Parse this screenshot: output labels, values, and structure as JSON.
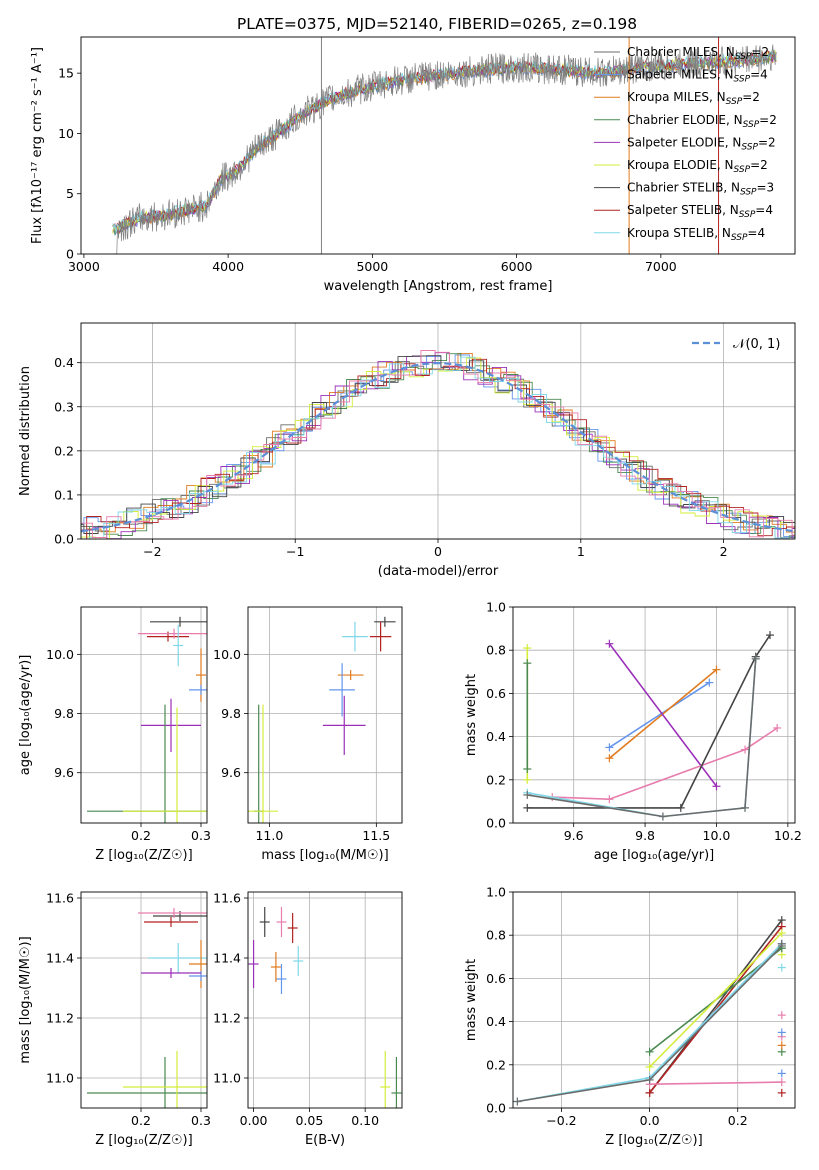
{
  "title": "PLATE=0375, MJD=52140, FIBERID=0265, z=0.198",
  "colors": {
    "Chabrier MILES": "#6b6b6b",
    "Salpeter MILES": "#6495ed",
    "Kroupa MILES": "#e07b1f",
    "Chabrier ELODIE": "#4a8a50",
    "Salpeter ELODIE": "#9b30b8",
    "Kroupa ELODIE": "#d4ed3a",
    "Chabrier STELIB": "#444444",
    "Salpeter STELIB": "#b22222",
    "Kroupa STELIB": "#7fd8e8",
    "pink": "#e87dad",
    "data": "#808080"
  },
  "chart_data": [
    {
      "id": "spectrum",
      "type": "line",
      "xlabel": "wavelength [Angstrom, rest frame]",
      "ylabel": "Flux [fλ10⁻¹⁷ erg cm⁻² s⁻¹ A⁻¹]",
      "xlim": [
        2980,
        7930
      ],
      "ylim": [
        0,
        18
      ],
      "xticks": [
        3000,
        4000,
        5000,
        6000,
        7000
      ],
      "yticks": [
        0,
        5,
        10,
        15
      ],
      "grid": false,
      "legend_placement": "top-right",
      "legend": [
        {
          "label": "Chabrier MILES, N",
          "sub": "SSP",
          "tail": "=2"
        },
        {
          "label": "Salpeter MILES, N",
          "sub": "SSP",
          "tail": "=4"
        },
        {
          "label": "Kroupa MILES, N",
          "sub": "SSP",
          "tail": "=2"
        },
        {
          "label": "Chabrier ELODIE, N",
          "sub": "SSP",
          "tail": "=2"
        },
        {
          "label": "Salpeter ELODIE, N",
          "sub": "SSP",
          "tail": "=2"
        },
        {
          "label": "Kroupa ELODIE, N",
          "sub": "SSP",
          "tail": "=2"
        },
        {
          "label": "Chabrier STELIB, N",
          "sub": "SSP",
          "tail": "=3"
        },
        {
          "label": "Salpeter STELIB, N",
          "sub": "SSP",
          "tail": "=4"
        },
        {
          "label": "Kroupa STELIB, N",
          "sub": "SSP",
          "tail": "=4"
        }
      ],
      "data_envelope": {
        "x": [
          3200,
          3400,
          3550,
          3700,
          3850,
          3950,
          4050,
          4200,
          4300,
          4500,
          4700,
          4900,
          5100,
          5300,
          5500,
          5800,
          6000,
          6300,
          6600,
          6800,
          7000,
          7200,
          7500,
          7800
        ],
        "y": [
          2.0,
          3.0,
          3.2,
          3.6,
          4.0,
          6.2,
          6.8,
          8.8,
          9.6,
          11.5,
          12.8,
          13.6,
          14.2,
          14.6,
          14.9,
          15.3,
          15.5,
          15.3,
          15.0,
          15.4,
          15.6,
          15.8,
          16.0,
          16.4
        ]
      },
      "sky_lines": [
        4647,
        6780,
        7400
      ]
    },
    {
      "id": "residuals",
      "type": "line",
      "xlabel": "(data-model)/error",
      "ylabel": "Normed distribution",
      "xlim": [
        -2.5,
        2.5
      ],
      "ylim": [
        0,
        0.49
      ],
      "xticks": [
        -2,
        -1,
        0,
        1,
        2
      ],
      "yticks": [
        0.0,
        0.1,
        0.2,
        0.3,
        0.4
      ],
      "grid": true,
      "legend_placement": "top-right",
      "legend": [
        {
          "label": "𝒩(0, 1)",
          "style": "dashed"
        }
      ],
      "gaussian": {
        "mean": 0,
        "sigma": 1
      }
    },
    {
      "id": "age-vs-Z",
      "type": "scatter",
      "xlabel": "Z [log₁₀(Z/Z☉)]",
      "ylabel": "age  [log₁₀(age/yr)]",
      "xlim": [
        0.1,
        0.31
      ],
      "ylim": [
        9.43,
        10.16
      ],
      "xticks": [
        0.2,
        0.3
      ],
      "yticks": [
        9.6,
        9.8,
        10.0
      ],
      "grid": true,
      "points": [
        {
          "series": "Chabrier STELIB",
          "x": 0.265,
          "y": 10.11,
          "xerr": 0.05
        },
        {
          "series": "Salpeter STELIB",
          "x": 0.245,
          "y": 10.06,
          "xerr": 0.035
        },
        {
          "series": "pink",
          "x": 0.255,
          "y": 10.07,
          "xerr": 0.06
        },
        {
          "series": "Kroupa STELIB",
          "x": 0.262,
          "y": 10.03,
          "yerr": 0.07
        },
        {
          "series": "Kroupa MILES",
          "x": 0.3,
          "y": 9.93,
          "yerr": 0.09
        },
        {
          "series": "Salpeter MILES",
          "x": 0.3,
          "y": 9.88,
          "xerr": 0.02
        },
        {
          "series": "Salpeter ELODIE",
          "x": 0.25,
          "y": 9.76,
          "xerr": 0.05,
          "yerr": 0.09
        },
        {
          "series": "Chabrier ELODIE",
          "x": 0.24,
          "y": 9.47,
          "yerr": 0.36,
          "xerr": 0.13
        },
        {
          "series": "Kroupa ELODIE",
          "x": 0.26,
          "y": 9.47,
          "yerr": 0.35,
          "xerr": 0.09
        }
      ]
    },
    {
      "id": "age-vs-mass",
      "type": "scatter",
      "xlabel": "mass [log₁₀(M/M☉)]",
      "ylabel": "",
      "xlim": [
        10.9,
        11.62
      ],
      "ylim": [
        9.43,
        10.16
      ],
      "xticks": [
        11.0,
        11.5
      ],
      "yticks": [
        9.6,
        9.8,
        10.0
      ],
      "grid": true,
      "points": [
        {
          "series": "Chabrier STELIB",
          "x": 11.54,
          "y": 10.11,
          "xerr": 0.05
        },
        {
          "series": "Salpeter STELIB",
          "x": 11.52,
          "y": 10.06,
          "xerr": 0.05,
          "yerr": 0.05
        },
        {
          "series": "Kroupa STELIB",
          "x": 11.4,
          "y": 10.06,
          "xerr": 0.06,
          "yerr": 0.05
        },
        {
          "series": "Kroupa MILES",
          "x": 11.38,
          "y": 9.93,
          "xerr": 0.06
        },
        {
          "series": "Salpeter MILES",
          "x": 11.34,
          "y": 9.88,
          "xerr": 0.06,
          "yerr": 0.09
        },
        {
          "series": "Salpeter ELODIE",
          "x": 11.35,
          "y": 9.76,
          "xerr": 0.1,
          "yerr": 0.1
        },
        {
          "series": "Chabrier ELODIE",
          "x": 10.95,
          "y": 9.47,
          "yerr": 0.36
        },
        {
          "series": "Kroupa ELODIE",
          "x": 10.97,
          "y": 9.47,
          "yerr": 0.36,
          "xerr": 0.07
        }
      ]
    },
    {
      "id": "weight-vs-age",
      "type": "line",
      "xlabel": "age  [log₁₀(age/yr)]",
      "ylabel": "mass weight",
      "xlim": [
        9.43,
        10.22
      ],
      "ylim": [
        0,
        1
      ],
      "xticks": [
        9.6,
        9.8,
        10.0,
        10.2
      ],
      "yticks": [
        0.0,
        0.2,
        0.4,
        0.6,
        0.8,
        1.0
      ],
      "grid": true,
      "series": [
        {
          "name": "Salpeter MILES",
          "x": [
            9.7,
            9.98
          ],
          "y": [
            0.35,
            0.65
          ]
        },
        {
          "name": "Kroupa MILES",
          "x": [
            9.7,
            10.0
          ],
          "y": [
            0.3,
            0.71
          ]
        },
        {
          "name": "Salpeter ELODIE",
          "x": [
            9.7,
            10.0
          ],
          "y": [
            0.83,
            0.17
          ]
        },
        {
          "name": "pink",
          "x": [
            9.54,
            9.7,
            10.08,
            10.17
          ],
          "y": [
            0.12,
            0.11,
            0.34,
            0.44
          ]
        },
        {
          "name": "Chabrier STELIB",
          "x": [
            9.47,
            9.9,
            10.11,
            10.15
          ],
          "y": [
            0.07,
            0.07,
            0.77,
            0.87
          ]
        },
        {
          "name": "Kroupa ELODIE",
          "x": [
            9.47,
            9.47
          ],
          "y": [
            0.2,
            0.81
          ]
        },
        {
          "name": "Chabrier ELODIE",
          "x": [
            9.47,
            9.47
          ],
          "y": [
            0.25,
            0.74
          ]
        },
        {
          "name": "Kroupa STELIB",
          "x": [
            9.47,
            9.85,
            10.08,
            10.11
          ],
          "y": [
            0.14,
            0.03,
            0.07,
            0.76
          ]
        },
        {
          "name": "Chabrier MILES",
          "x": [
            9.47,
            9.85,
            10.08,
            10.11
          ],
          "y": [
            0.13,
            0.03,
            0.07,
            0.76
          ]
        }
      ]
    },
    {
      "id": "mass-vs-Z",
      "type": "scatter",
      "xlabel": "Z [log₁₀(Z/Z☉)]",
      "ylabel": "mass [log₁₀(M/M☉)]",
      "xlim": [
        0.1,
        0.31
      ],
      "ylim": [
        10.9,
        11.62
      ],
      "xticks": [
        0.2,
        0.3
      ],
      "yticks": [
        11.0,
        11.2,
        11.4,
        11.6
      ],
      "grid": true,
      "points": [
        {
          "series": "Chabrier STELIB",
          "x": 0.265,
          "y": 11.54,
          "xerr": 0.045
        },
        {
          "series": "Salpeter STELIB",
          "x": 0.25,
          "y": 11.52,
          "xerr": 0.045
        },
        {
          "series": "pink",
          "x": 0.255,
          "y": 11.55,
          "xerr": 0.06
        },
        {
          "series": "Kroupa STELIB",
          "x": 0.262,
          "y": 11.4,
          "yerr": 0.05,
          "xerr": 0.05
        },
        {
          "series": "Kroupa MILES",
          "x": 0.3,
          "y": 11.38,
          "xerr": 0.02,
          "yerr": 0.08
        },
        {
          "series": "Salpeter MILES",
          "x": 0.3,
          "y": 11.34,
          "xerr": 0.02
        },
        {
          "series": "Salpeter ELODIE",
          "x": 0.25,
          "y": 11.35,
          "xerr": 0.05
        },
        {
          "series": "Chabrier ELODIE",
          "x": 0.24,
          "y": 10.95,
          "yerr": 0.12,
          "xerr": 0.13
        },
        {
          "series": "Kroupa ELODIE",
          "x": 0.26,
          "y": 10.97,
          "yerr": 0.12,
          "xerr": 0.09
        }
      ]
    },
    {
      "id": "mass-vs-ebv",
      "type": "scatter",
      "xlabel": "E(B-V)",
      "ylabel": "",
      "xlim": [
        -0.005,
        0.133
      ],
      "ylim": [
        10.9,
        11.62
      ],
      "xticks": [
        0.0,
        0.05,
        0.1
      ],
      "yticks": [
        11.0,
        11.2,
        11.4,
        11.6
      ],
      "grid": true,
      "points": [
        {
          "series": "Chabrier STELIB",
          "x": 0.01,
          "y": 11.52,
          "yerr": 0.05
        },
        {
          "series": "pink",
          "x": 0.025,
          "y": 11.52,
          "yerr": 0.05
        },
        {
          "series": "Salpeter STELIB",
          "x": 0.035,
          "y": 11.5,
          "yerr": 0.05
        },
        {
          "series": "Kroupa MILES",
          "x": 0.02,
          "y": 11.37,
          "yerr": 0.05
        },
        {
          "series": "Salpeter MILES",
          "x": 0.025,
          "y": 11.33,
          "yerr": 0.05
        },
        {
          "series": "Kroupa STELIB",
          "x": 0.04,
          "y": 11.39,
          "yerr": 0.05
        },
        {
          "series": "Salpeter ELODIE",
          "x": 0.0,
          "y": 11.38,
          "yerr": 0.08
        },
        {
          "series": "Kroupa ELODIE",
          "x": 0.118,
          "y": 10.97,
          "yerr": 0.12
        },
        {
          "series": "Chabrier ELODIE",
          "x": 0.128,
          "y": 10.95,
          "yerr": 0.12
        }
      ]
    },
    {
      "id": "weight-vs-Z",
      "type": "line",
      "xlabel": "Z [log₁₀(Z/Z☉)]",
      "ylabel": "mass weight",
      "xlim": [
        -0.31,
        0.33
      ],
      "ylim": [
        0,
        1
      ],
      "xticks": [
        -0.2,
        0.0,
        0.2
      ],
      "yticks": [
        0.0,
        0.2,
        0.4,
        0.6,
        0.8,
        1.0
      ],
      "grid": true,
      "series": [
        {
          "name": "Chabrier STELIB",
          "x": [
            0.0,
            0.3
          ],
          "y": [
            0.07,
            0.87
          ]
        },
        {
          "name": "Salpeter STELIB",
          "x": [
            0.0,
            0.3
          ],
          "y": [
            0.07,
            0.84
          ]
        },
        {
          "name": "Chabrier ELODIE",
          "x": [
            0.0,
            0.3
          ],
          "y": [
            0.26,
            0.74
          ]
        },
        {
          "name": "Kroupa ELODIE",
          "x": [
            0.0,
            0.3
          ],
          "y": [
            0.19,
            0.81
          ]
        },
        {
          "name": "Salpeter MILES",
          "x": [
            0.0,
            0.3
          ],
          "y": [
            0.14,
            0.76
          ]
        },
        {
          "name": "pink",
          "x": [
            0.0,
            0.3
          ],
          "y": [
            0.11,
            0.12
          ]
        },
        {
          "name": "Kroupa STELIB",
          "x": [
            -0.3,
            0.0,
            0.3
          ],
          "y": [
            0.03,
            0.14,
            0.76
          ]
        },
        {
          "name": "Chabrier MILES",
          "x": [
            -0.3,
            0.0,
            0.3
          ],
          "y": [
            0.03,
            0.13,
            0.75
          ]
        }
      ],
      "markers_at_z03": [
        0.07,
        0.16,
        0.26,
        0.29,
        0.33,
        0.35,
        0.43,
        0.65,
        0.71,
        0.74,
        0.76
      ]
    }
  ]
}
